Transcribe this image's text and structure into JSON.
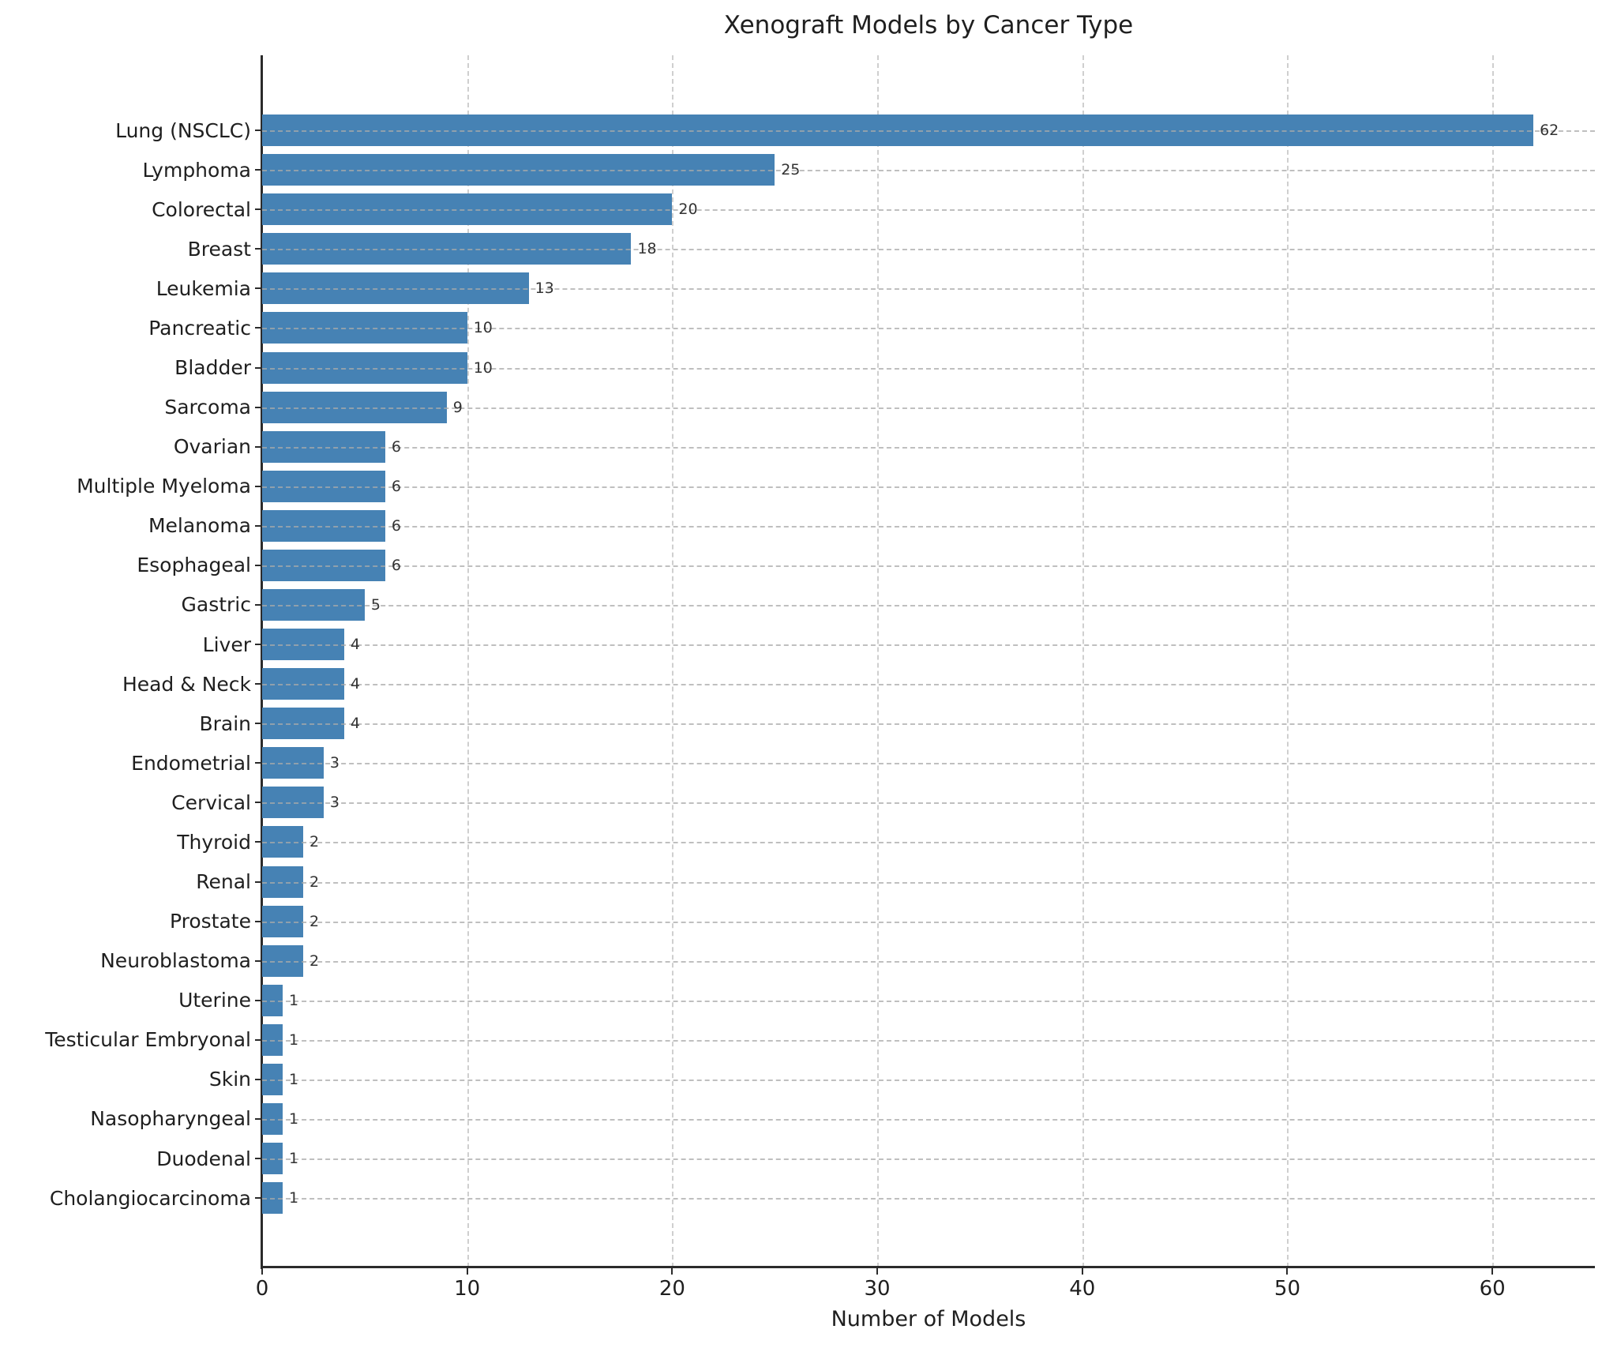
{
  "chart_data": {
    "type": "bar",
    "orientation": "horizontal",
    "title": "Xenograft Models by Cancer Type",
    "xlabel": "Number of Models",
    "ylabel": "",
    "categories": [
      "Lung (NSCLC)",
      "Lymphoma",
      "Colorectal",
      "Breast",
      "Leukemia",
      "Pancreatic",
      "Bladder",
      "Sarcoma",
      "Ovarian",
      "Multiple Myeloma",
      "Melanoma",
      "Esophageal",
      "Gastric",
      "Liver",
      "Head & Neck",
      "Brain",
      "Endometrial",
      "Cervical",
      "Thyroid",
      "Renal",
      "Prostate",
      "Neuroblastoma",
      "Uterine",
      "Testicular Embryonal",
      "Skin",
      "Nasopharyngeal",
      "Duodenal",
      "Cholangiocarcinoma"
    ],
    "values": [
      62,
      25,
      20,
      18,
      13,
      10,
      10,
      9,
      6,
      6,
      6,
      6,
      5,
      4,
      4,
      4,
      3,
      3,
      2,
      2,
      2,
      2,
      1,
      1,
      1,
      1,
      1,
      1
    ],
    "xlim": [
      0,
      65
    ],
    "xticks": [
      0,
      10,
      20,
      30,
      40,
      50,
      60
    ],
    "grid": true,
    "legend": "none",
    "bar_color": "#4682B4",
    "grid_color": "#cfcfcf",
    "text_color": "#1f1f1f",
    "value_labels_shown": true
  }
}
